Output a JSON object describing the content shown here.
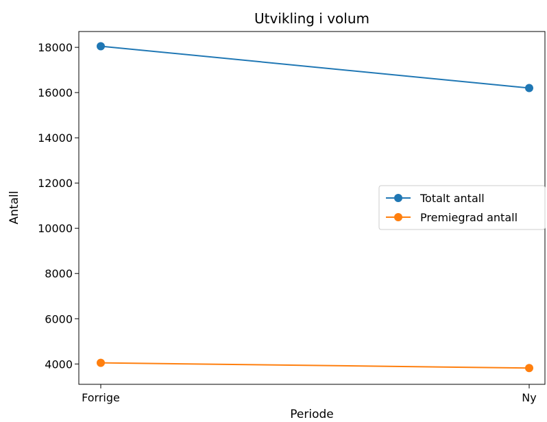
{
  "chart_data": {
    "type": "line",
    "title": "Utvikling i volum",
    "xlabel": "Periode",
    "ylabel": "Antall",
    "categories": [
      "Forrige",
      "Ny"
    ],
    "series": [
      {
        "name": "Totalt antall",
        "values": [
          18050,
          16200
        ],
        "color": "#1f77b4"
      },
      {
        "name": "Premiegrad antall",
        "values": [
          4050,
          3820
        ],
        "color": "#ff7f0e"
      }
    ],
    "ylim": [
      3100,
      18700
    ],
    "yticks": [
      4000,
      6000,
      8000,
      10000,
      12000,
      14000,
      16000,
      18000
    ],
    "grid": false,
    "legend": "center-right",
    "marker": "circle"
  }
}
